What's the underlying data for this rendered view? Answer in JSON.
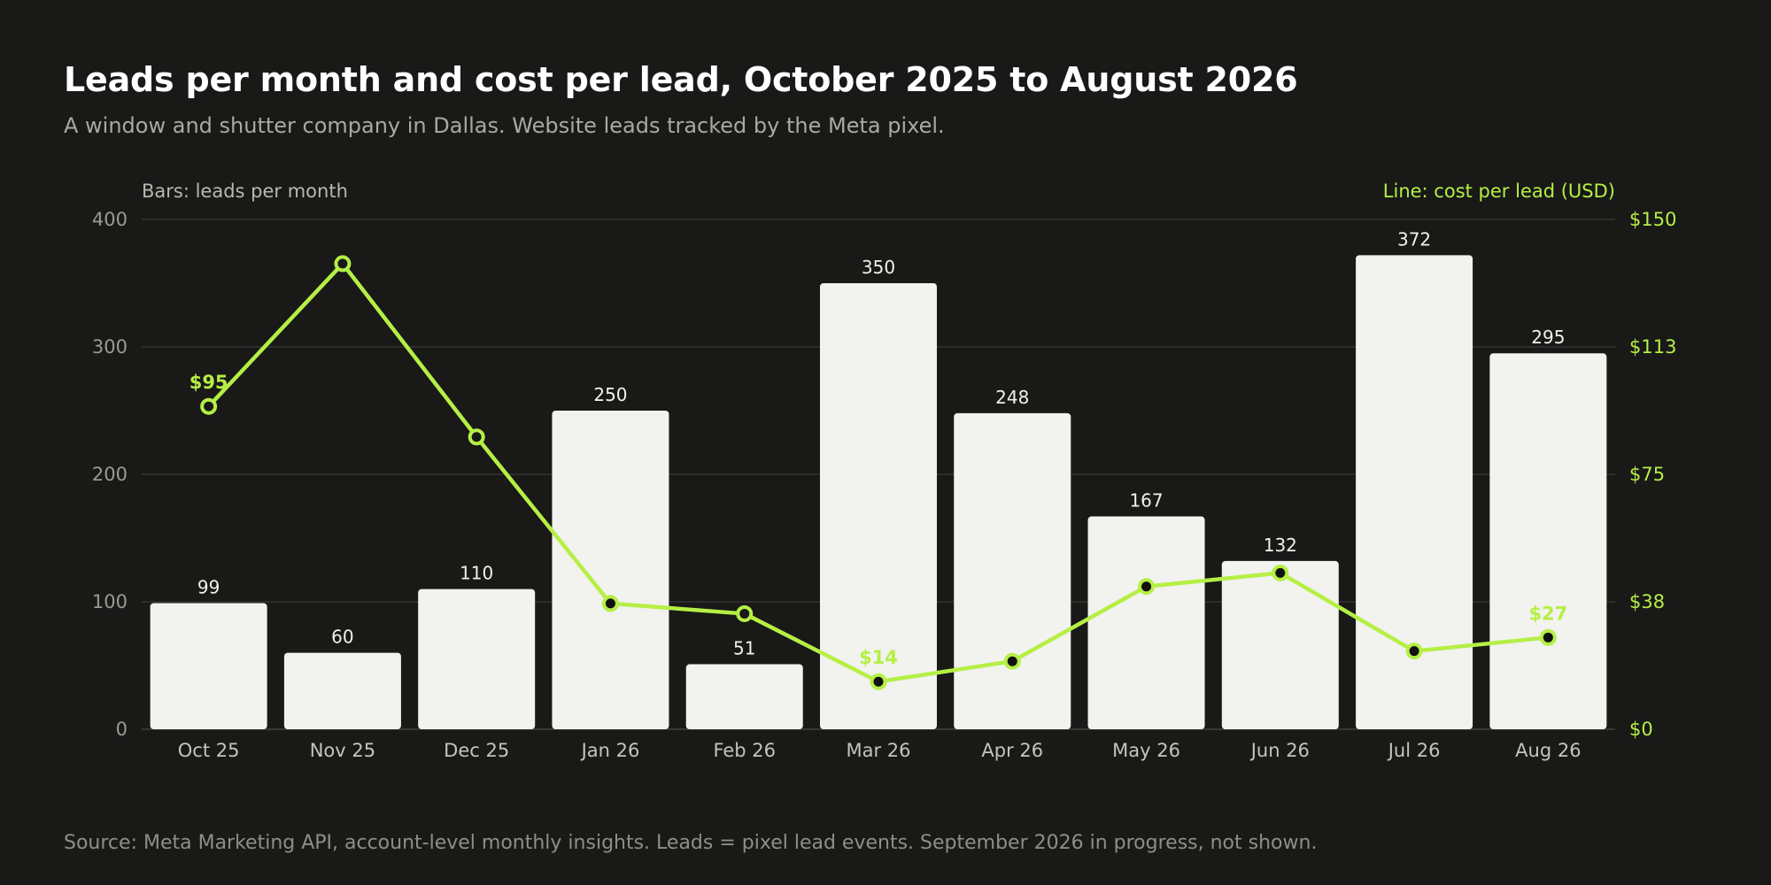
{
  "title": "Leads per month and cost per lead, October 2025 to August 2026",
  "subtitle": "A window and shutter company in Dallas. Website leads tracked by the Meta pixel.",
  "source": "Source: Meta Marketing API, account-level monthly insights. Leads = pixel lead events. September 2026 in progress, not shown.",
  "colors": {
    "background": "#191918",
    "bar": "#f2f2ee",
    "line": "#b5ef45",
    "grid": "#3a3a37",
    "marker_fill_dark": "#111111"
  },
  "chart_data": {
    "type": "bar+line",
    "categories": [
      "Oct 25",
      "Nov 25",
      "Dec 25",
      "Jan 26",
      "Feb 26",
      "Mar 26",
      "Apr 26",
      "May 26",
      "Jun 26",
      "Jul 26",
      "Aug 26"
    ],
    "bar_series": {
      "name": "leads per month",
      "axis": "left",
      "values": [
        99,
        60,
        110,
        250,
        51,
        350,
        248,
        167,
        132,
        372,
        295
      ],
      "data_labels": [
        "99",
        "60",
        "110",
        "250",
        "51",
        "350",
        "248",
        "167",
        "132",
        "372",
        "295"
      ]
    },
    "line_series": {
      "name": "cost per lead (USD)",
      "axis": "right",
      "values": [
        95,
        137,
        86,
        37,
        34,
        14,
        20,
        42,
        46,
        23,
        27
      ],
      "markers": [
        "hollow",
        "hollow",
        "hollow",
        "filled",
        "hollow",
        "filled",
        "filled",
        "filled",
        "filled",
        "filled",
        "filled"
      ],
      "labeled_points": [
        {
          "index": 0,
          "text": "$95"
        },
        {
          "index": 5,
          "text": "$14"
        },
        {
          "index": 10,
          "text": "$27"
        }
      ]
    },
    "left_axis": {
      "title": "Bars: leads per month",
      "range": [
        0,
        400
      ],
      "ticks": [
        0,
        100,
        200,
        300,
        400
      ],
      "tick_labels": [
        "0",
        "100",
        "200",
        "300",
        "400"
      ]
    },
    "right_axis": {
      "title": "Line: cost per lead (USD)",
      "range": [
        0,
        150
      ],
      "ticks": [
        0,
        37.5,
        75,
        112.5,
        150
      ],
      "tick_labels": [
        "$0",
        "$38",
        "$75",
        "$113",
        "$150"
      ]
    },
    "grid": true,
    "legend": "none"
  }
}
